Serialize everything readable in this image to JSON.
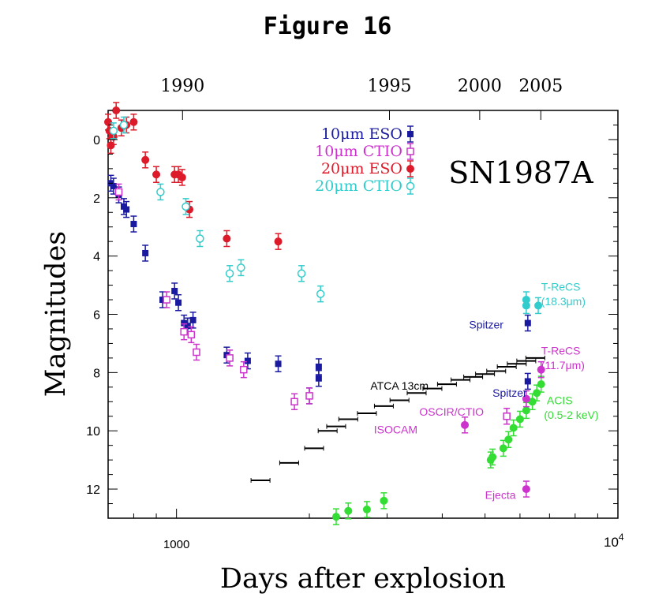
{
  "page": {
    "title": "Figure 16"
  },
  "colors": {
    "eso10": "#1a1aa0",
    "ctio10": "#cc33cc",
    "eso20": "#dd1a2a",
    "ctio20": "#33cccc",
    "radio": "#000000",
    "xray": "#33dd33"
  },
  "chart_data": {
    "type": "scatter",
    "title": "SN1987A",
    "xlabel": "Days after explosion",
    "ylabel": "Magnitudes",
    "xscale": "log",
    "xlim": [
      700,
      10000
    ],
    "ylim": [
      13,
      -1
    ],
    "x_ticks": [
      {
        "value": 1000,
        "label": "1000"
      },
      {
        "value": 10000,
        "label": "10^4"
      }
    ],
    "top_axis_ticks": [
      {
        "value": 1032,
        "label": "1990"
      },
      {
        "value": 3037,
        "label": "1995"
      },
      {
        "value": 4863,
        "label": "2000"
      },
      {
        "value": 6689,
        "label": "2005"
      }
    ],
    "y_ticks": [
      0,
      2,
      4,
      6,
      8,
      10,
      12
    ],
    "legend": {
      "position": "top-center",
      "entries": [
        {
          "label": "10μm ESO",
          "series": "eso10"
        },
        {
          "label": "10μm CTIO",
          "series": "ctio10"
        },
        {
          "label": "20μm ESO",
          "series": "eso20"
        },
        {
          "label": "20μm CTIO",
          "series": "ctio20"
        }
      ]
    },
    "series": [
      {
        "name": "10μm ESO",
        "key": "eso10",
        "marker": "square",
        "points": [
          [
            710,
            1.5
          ],
          [
            720,
            1.6
          ],
          [
            740,
            1.9
          ],
          [
            760,
            2.3
          ],
          [
            770,
            2.4
          ],
          [
            800,
            2.9
          ],
          [
            850,
            3.9
          ],
          [
            930,
            5.5
          ],
          [
            990,
            5.2
          ],
          [
            1010,
            5.6
          ],
          [
            1040,
            6.3
          ],
          [
            1060,
            6.4
          ],
          [
            1090,
            6.2
          ],
          [
            1300,
            7.4
          ],
          [
            1450,
            7.6
          ],
          [
            1700,
            7.7
          ],
          [
            2000,
            8.8
          ],
          [
            2100,
            7.8
          ],
          [
            2100,
            8.2
          ],
          [
            6250,
            6.3
          ],
          [
            6250,
            8.3
          ]
        ]
      },
      {
        "name": "10μm CTIO",
        "key": "ctio10",
        "marker": "open-square",
        "points": [
          [
            740,
            1.8
          ],
          [
            950,
            5.5
          ],
          [
            1040,
            6.6
          ],
          [
            1080,
            6.7
          ],
          [
            1110,
            7.3
          ],
          [
            1320,
            7.5
          ],
          [
            1420,
            7.9
          ],
          [
            1850,
            9.0
          ],
          [
            2000,
            8.8
          ],
          [
            5600,
            9.5
          ]
        ]
      },
      {
        "name": "20μm ESO",
        "key": "eso20",
        "marker": "circle",
        "points": [
          [
            700,
            -0.6
          ],
          [
            705,
            -0.3
          ],
          [
            710,
            0.2
          ],
          [
            720,
            -0.1
          ],
          [
            730,
            -1.0
          ],
          [
            750,
            -0.4
          ],
          [
            770,
            -0.5
          ],
          [
            800,
            -0.6
          ],
          [
            850,
            0.7
          ],
          [
            900,
            1.2
          ],
          [
            990,
            1.2
          ],
          [
            1010,
            1.2
          ],
          [
            1030,
            1.3
          ],
          [
            1070,
            2.4
          ],
          [
            1300,
            3.4
          ],
          [
            1700,
            3.5
          ]
        ]
      },
      {
        "name": "20μm CTIO",
        "key": "ctio20",
        "marker": "open-circle",
        "points": [
          [
            720,
            -0.3
          ],
          [
            760,
            -0.5
          ],
          [
            920,
            1.8
          ],
          [
            1050,
            2.3
          ],
          [
            1130,
            3.4
          ],
          [
            1320,
            4.6
          ],
          [
            1400,
            4.4
          ],
          [
            1920,
            4.6
          ],
          [
            2120,
            5.3
          ]
        ]
      },
      {
        "name": "ATCA 13cm",
        "key": "radio",
        "marker": "bar",
        "points": [
          [
            1550,
            11.7
          ],
          [
            1800,
            11.1
          ],
          [
            2050,
            10.6
          ],
          [
            2200,
            10.0
          ],
          [
            2300,
            9.85
          ],
          [
            2450,
            9.6
          ],
          [
            2700,
            9.4
          ],
          [
            2950,
            9.15
          ],
          [
            3200,
            8.95
          ],
          [
            3500,
            8.7
          ],
          [
            3800,
            8.55
          ],
          [
            4100,
            8.4
          ],
          [
            4400,
            8.25
          ],
          [
            4700,
            8.15
          ],
          [
            5000,
            8.05
          ],
          [
            5300,
            7.95
          ],
          [
            5600,
            7.8
          ],
          [
            5900,
            7.7
          ],
          [
            6200,
            7.6
          ],
          [
            6500,
            7.5
          ]
        ]
      },
      {
        "name": "ACIS (0.5-2 keV)",
        "key": "xray",
        "marker": "circle",
        "points": [
          [
            2300,
            12.95
          ],
          [
            2450,
            12.75
          ],
          [
            2700,
            12.7
          ],
          [
            2950,
            12.4
          ],
          [
            5150,
            11.0
          ],
          [
            5200,
            10.9
          ],
          [
            5500,
            10.6
          ],
          [
            5650,
            10.3
          ],
          [
            5800,
            9.9
          ],
          [
            6000,
            9.6
          ],
          [
            6200,
            9.3
          ],
          [
            6400,
            9.0
          ],
          [
            6550,
            8.7
          ],
          [
            6700,
            8.4
          ]
        ]
      },
      {
        "name": "T-ReCS 18.3μm",
        "key": "ctio20",
        "marker": "circle",
        "points": [
          [
            6200,
            5.7
          ],
          [
            6200,
            5.5
          ],
          [
            6600,
            5.7
          ]
        ]
      },
      {
        "name": "T-ReCS 11.7μm",
        "key": "ctio10",
        "marker": "circle",
        "points": [
          [
            6700,
            7.9
          ]
        ]
      },
      {
        "name": "Spitzer",
        "key": "ctio10",
        "marker": "circle",
        "points": [
          [
            6200,
            8.9
          ]
        ]
      },
      {
        "name": "ISOCAM",
        "key": "ctio10",
        "marker": "circle",
        "points": [
          [
            4500,
            9.8
          ]
        ]
      },
      {
        "name": "Ejecta",
        "key": "ctio10",
        "marker": "circle",
        "points": [
          [
            6200,
            12.0
          ]
        ]
      }
    ],
    "annotations": [
      {
        "text": "ATCA 13cm",
        "x": 2750,
        "y": 8.45,
        "color": "#000000",
        "anchor": "start"
      },
      {
        "text": "OSCIR/CTIO",
        "x": 3550,
        "y": 9.35,
        "color": "#cc33cc",
        "anchor": "start"
      },
      {
        "text": "ISOCAM",
        "x": 2800,
        "y": 9.95,
        "color": "#cc33cc",
        "anchor": "start"
      },
      {
        "text": "Spitzer",
        "x": 4600,
        "y": 6.35,
        "color": "#1a1aa0",
        "anchor": "start"
      },
      {
        "text": "Spitzer",
        "x": 5200,
        "y": 8.7,
        "color": "#1a1aa0",
        "anchor": "start"
      },
      {
        "text": "T-ReCS",
        "x": 6700,
        "y": 5.05,
        "color": "#33cccc",
        "anchor": "start"
      },
      {
        "text": "(18.3μm)",
        "x": 6700,
        "y": 5.55,
        "color": "#33cccc",
        "anchor": "start"
      },
      {
        "text": "T-ReCS",
        "x": 6700,
        "y": 7.25,
        "color": "#cc33cc",
        "anchor": "start"
      },
      {
        "text": "(11.7μm)",
        "x": 6700,
        "y": 7.75,
        "color": "#cc33cc",
        "anchor": "start"
      },
      {
        "text": "ACIS",
        "x": 6900,
        "y": 8.95,
        "color": "#33dd33",
        "anchor": "start"
      },
      {
        "text": "(0.5-2 keV)",
        "x": 6800,
        "y": 9.45,
        "color": "#33dd33",
        "anchor": "start"
      },
      {
        "text": "Ejecta",
        "x": 5000,
        "y": 12.2,
        "color": "#cc33cc",
        "anchor": "start"
      }
    ]
  }
}
